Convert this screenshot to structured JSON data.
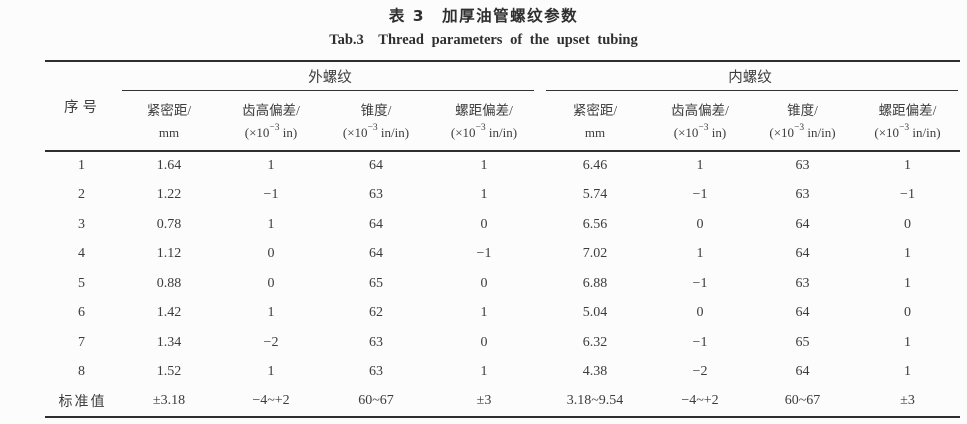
{
  "page": {
    "background": "#fcfcfc",
    "text_color": "#3c3c3c",
    "rule_color": "#2e2e2e"
  },
  "titles": {
    "zh": "表 3　加厚油管螺纹参数",
    "en": "Tab.3　Thread parameters of the upset tubing"
  },
  "table": {
    "serial_header": "序号",
    "groups": [
      {
        "label": "外螺纹"
      },
      {
        "label": "内螺纹"
      }
    ],
    "columns": [
      {
        "name": "紧密距/",
        "unit_pre": "mm",
        "unit_sup": "",
        "unit_post": ""
      },
      {
        "name": "齿高偏差/",
        "unit_pre": "(×10",
        "unit_sup": "−3",
        "unit_post": " in)"
      },
      {
        "name": "锥度/",
        "unit_pre": "(×10",
        "unit_sup": "−3",
        "unit_post": " in/in)"
      },
      {
        "name": "螺距偏差/",
        "unit_pre": "(×10",
        "unit_sup": "−3",
        "unit_post": " in/in)"
      },
      {
        "name": "紧密距/",
        "unit_pre": "mm",
        "unit_sup": "",
        "unit_post": ""
      },
      {
        "name": "齿高偏差/",
        "unit_pre": "(×10",
        "unit_sup": "−3",
        "unit_post": " in)"
      },
      {
        "name": "锥度/",
        "unit_pre": "(×10",
        "unit_sup": "−3",
        "unit_post": " in/in)"
      },
      {
        "name": "螺距偏差/",
        "unit_pre": "(×10",
        "unit_sup": "−3",
        "unit_post": " in/in)"
      }
    ],
    "rows": [
      {
        "no": "1",
        "cells": [
          "1.64",
          "1",
          "64",
          "1",
          "6.46",
          "1",
          "63",
          "1"
        ]
      },
      {
        "no": "2",
        "cells": [
          "1.22",
          "−1",
          "63",
          "1",
          "5.74",
          "−1",
          "63",
          "−1"
        ]
      },
      {
        "no": "3",
        "cells": [
          "0.78",
          "1",
          "64",
          "0",
          "6.56",
          "0",
          "64",
          "0"
        ]
      },
      {
        "no": "4",
        "cells": [
          "1.12",
          "0",
          "64",
          "−1",
          "7.02",
          "1",
          "64",
          "1"
        ]
      },
      {
        "no": "5",
        "cells": [
          "0.88",
          "0",
          "65",
          "0",
          "6.88",
          "−1",
          "63",
          "1"
        ]
      },
      {
        "no": "6",
        "cells": [
          "1.42",
          "1",
          "62",
          "1",
          "5.04",
          "0",
          "64",
          "0"
        ]
      },
      {
        "no": "7",
        "cells": [
          "1.34",
          "−2",
          "63",
          "0",
          "6.32",
          "−1",
          "65",
          "1"
        ]
      },
      {
        "no": "8",
        "cells": [
          "1.52",
          "1",
          "63",
          "1",
          "4.38",
          "−2",
          "64",
          "1"
        ]
      },
      {
        "no": "标准值",
        "cells": [
          "±3.18",
          "−4~+2",
          "60~67",
          "±3",
          "3.18~9.54",
          "−4~+2",
          "60~67",
          "±3"
        ]
      }
    ]
  }
}
